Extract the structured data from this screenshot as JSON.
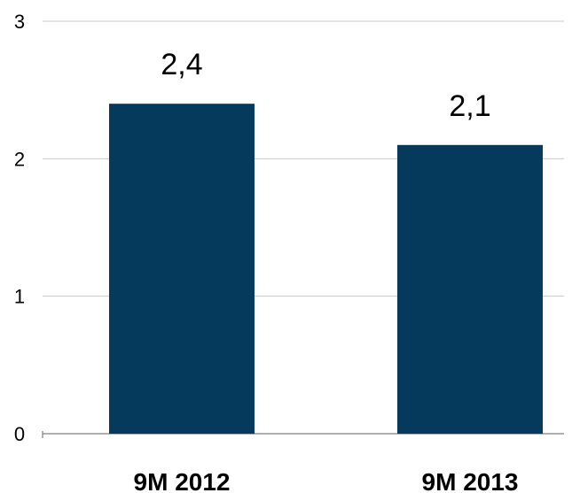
{
  "chart_data": {
    "type": "bar",
    "title": "",
    "xlabel": "",
    "ylabel": "",
    "categories": [
      "9M 2012",
      "9M 2013"
    ],
    "values": [
      2.4,
      2.1
    ],
    "value_labels": [
      "2,4",
      "2,1"
    ],
    "ylim": [
      0,
      3
    ],
    "yticks": [
      0,
      1,
      2,
      3
    ],
    "ytick_labels": [
      "0",
      "1",
      "2",
      "3"
    ],
    "grid": true,
    "legend": "none",
    "colors": {
      "bar": "#053a5c",
      "grid": "#c8c8c8",
      "axis": "#7f7f7f"
    }
  }
}
